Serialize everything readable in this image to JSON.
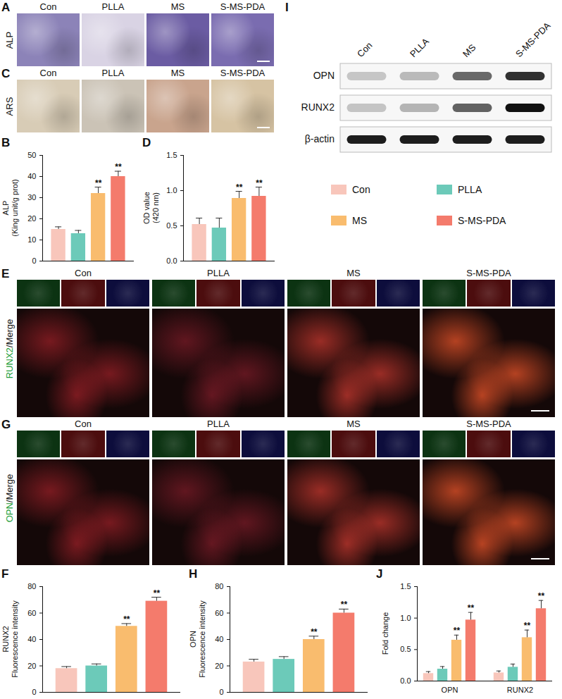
{
  "chart_data": [
    {
      "panel": "B",
      "type": "bar",
      "y_label": "ALP\n(King unit/g prot)",
      "categories": [
        null
      ],
      "ylim": [
        0,
        50
      ],
      "yticks": [
        0,
        10,
        20,
        30,
        40,
        50
      ],
      "tick_labels": "y",
      "series": [
        {
          "name": "Con",
          "color": "#f8c6bb",
          "values": [
            15
          ],
          "errors": [
            1.2
          ]
        },
        {
          "name": "PLLA",
          "color": "#6ccab9",
          "values": [
            13
          ],
          "errors": [
            1.5
          ]
        },
        {
          "name": "MS",
          "color": "#f9bc6e",
          "values": [
            32
          ],
          "errors": [
            3
          ]
        },
        {
          "name": "S-MS-PDA",
          "color": "#f47b6c",
          "values": [
            40
          ],
          "errors": [
            2.5
          ]
        }
      ],
      "annotations": [
        {
          "series": "MS",
          "text": "**"
        },
        {
          "series": "S-MS-PDA",
          "text": "**"
        }
      ]
    },
    {
      "panel": "D",
      "type": "bar",
      "y_label": "OD value\n(420 nm)",
      "categories": [
        null
      ],
      "ylim": [
        0,
        1.5
      ],
      "yticks": [
        {
          "value": 0,
          "label": "0.0"
        },
        0.5,
        {
          "value": 1,
          "label": "1.0"
        },
        1.5
      ],
      "tick_labels": "y",
      "series": [
        {
          "name": "Con",
          "color": "#f8c6bb",
          "values": [
            0.52
          ],
          "errors": [
            0.09
          ]
        },
        {
          "name": "PLLA",
          "color": "#6ccab9",
          "values": [
            0.47
          ],
          "errors": [
            0.14
          ]
        },
        {
          "name": "MS",
          "color": "#f9bc6e",
          "values": [
            0.89
          ],
          "errors": [
            0.1
          ]
        },
        {
          "name": "S-MS-PDA",
          "color": "#f47b6c",
          "values": [
            0.92
          ],
          "errors": [
            0.13
          ]
        }
      ],
      "annotations": [
        {
          "series": "MS",
          "text": "**"
        },
        {
          "series": "S-MS-PDA",
          "text": "**"
        }
      ]
    },
    {
      "panel": "F",
      "type": "bar",
      "y_label": "RUNX2\nFluorescence intensity",
      "categories": [
        null
      ],
      "ylim": [
        0,
        80
      ],
      "yticks": [
        0,
        20,
        40,
        60,
        80
      ],
      "tick_labels": "y",
      "series": [
        {
          "name": "Con",
          "color": "#f8c6bb",
          "values": [
            18
          ],
          "errors": [
            1.5
          ]
        },
        {
          "name": "PLLA",
          "color": "#6ccab9",
          "values": [
            20
          ],
          "errors": [
            1.5
          ]
        },
        {
          "name": "MS",
          "color": "#f9bc6e",
          "values": [
            50
          ],
          "errors": [
            2
          ]
        },
        {
          "name": "S-MS-PDA",
          "color": "#f47b6c",
          "values": [
            69
          ],
          "errors": [
            3
          ]
        }
      ],
      "annotations": [
        {
          "series": "MS",
          "text": "**"
        },
        {
          "series": "S-MS-PDA",
          "text": "**"
        }
      ]
    },
    {
      "panel": "H",
      "type": "bar",
      "y_label": "OPN\nFluorescence intensity",
      "categories": [
        null
      ],
      "ylim": [
        0,
        80
      ],
      "yticks": [
        0,
        20,
        40,
        60,
        80
      ],
      "tick_labels": "y",
      "series": [
        {
          "name": "Con",
          "color": "#f8c6bb",
          "values": [
            23
          ],
          "errors": [
            2
          ]
        },
        {
          "name": "PLLA",
          "color": "#6ccab9",
          "values": [
            25
          ],
          "errors": [
            2
          ]
        },
        {
          "name": "MS",
          "color": "#f9bc6e",
          "values": [
            40
          ],
          "errors": [
            2.5
          ]
        },
        {
          "name": "S-MS-PDA",
          "color": "#f47b6c",
          "values": [
            60
          ],
          "errors": [
            3
          ]
        }
      ],
      "annotations": [
        {
          "series": "MS",
          "text": "**"
        },
        {
          "series": "S-MS-PDA",
          "text": "**"
        }
      ]
    },
    {
      "panel": "J",
      "type": "bar",
      "y_label": "Fold change",
      "categories": [
        "OPN",
        "RUNX2"
      ],
      "ylim": [
        0,
        1.5
      ],
      "yticks": [
        {
          "value": 0,
          "label": "0.0"
        },
        0.5,
        {
          "value": 1,
          "label": "1.0"
        },
        1.5
      ],
      "series": [
        {
          "name": "Con",
          "color": "#f8c6bb",
          "values": [
            0.12,
            0.13
          ],
          "errors": [
            0.03,
            0.03
          ]
        },
        {
          "name": "PLLA",
          "color": "#6ccab9",
          "values": [
            0.19,
            0.22
          ],
          "errors": [
            0.04,
            0.05
          ]
        },
        {
          "name": "MS",
          "color": "#f9bc6e",
          "values": [
            0.65,
            0.69
          ],
          "errors": [
            0.08,
            0.12
          ]
        },
        {
          "name": "S-MS-PDA",
          "color": "#f47b6c",
          "values": [
            0.97,
            1.15
          ],
          "errors": [
            0.12,
            0.13
          ]
        }
      ],
      "annotations": [
        {
          "series": "MS",
          "text": "**"
        },
        {
          "series": "S-MS-PDA",
          "text": "**"
        }
      ]
    }
  ],
  "panels": [
    {
      "letter": "A",
      "groups": [
        "Con",
        "PLLA",
        "MS",
        "S-MS-PDA"
      ],
      "label_parts": [
        {
          "text": "ALP",
          "color": "#111111"
        }
      ]
    },
    {
      "letter": "C",
      "groups": [
        "Con",
        "PLLA",
        "MS",
        "S-MS-PDA"
      ],
      "label_parts": [
        {
          "text": "ARS",
          "color": "#111111"
        }
      ]
    },
    {
      "letter": "E",
      "groups": [
        "Con",
        "PLLA",
        "MS",
        "S-MS-PDA"
      ],
      "label_parts": [
        {
          "text": "RUNX2",
          "color": "#1e9e3a"
        },
        {
          "text": "/Merge",
          "color": "#111111"
        }
      ]
    },
    {
      "letter": "G",
      "groups": [
        "Con",
        "PLLA",
        "MS",
        "S-MS-PDA"
      ],
      "label_parts": [
        {
          "text": "OPN",
          "color": "#1e9e3a"
        },
        {
          "text": "/Merge",
          "color": "#111111"
        }
      ]
    }
  ],
  "blot": {
    "letter": "I",
    "lanes": [
      "Con",
      "PLLA",
      "MS",
      "S-MS-PDA"
    ],
    "rows": [
      "OPN",
      "RUNX2",
      "β-actin"
    ]
  }
}
